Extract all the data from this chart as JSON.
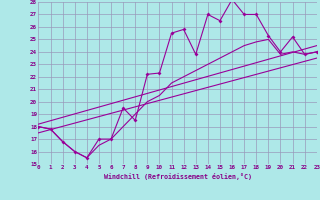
{
  "xlabel": "Windchill (Refroidissement éolien,°C)",
  "bg_color": "#aee8e8",
  "grid_color": "#9999bb",
  "line_color": "#990099",
  "x_min": 0,
  "x_max": 23,
  "y_min": 15,
  "y_max": 28,
  "line1_x": [
    0,
    1,
    2,
    3,
    4,
    5,
    6,
    7,
    8,
    9,
    10,
    11,
    12,
    13,
    14,
    15,
    16,
    17,
    18,
    19,
    20,
    21,
    22,
    23
  ],
  "line1_y": [
    18.0,
    17.8,
    16.8,
    16.0,
    15.5,
    17.0,
    17.0,
    19.5,
    18.5,
    22.2,
    22.3,
    25.5,
    25.8,
    23.8,
    27.0,
    26.5,
    28.2,
    27.0,
    27.0,
    25.3,
    24.0,
    25.2,
    23.8,
    24.0
  ],
  "line2_x": [
    0,
    1,
    2,
    3,
    4,
    5,
    6,
    7,
    8,
    9,
    10,
    11,
    12,
    13,
    14,
    15,
    16,
    17,
    18,
    19,
    20,
    21,
    22,
    23
  ],
  "line2_y": [
    18.0,
    17.8,
    16.8,
    16.0,
    15.5,
    16.5,
    17.0,
    18.0,
    19.0,
    20.0,
    20.5,
    21.5,
    22.0,
    22.5,
    23.0,
    23.5,
    24.0,
    24.5,
    24.8,
    25.0,
    23.8,
    24.0,
    23.8,
    24.0
  ],
  "line3_x": [
    0,
    23
  ],
  "line3_y": [
    17.5,
    23.5
  ],
  "line4_x": [
    0,
    23
  ],
  "line4_y": [
    18.2,
    24.5
  ]
}
